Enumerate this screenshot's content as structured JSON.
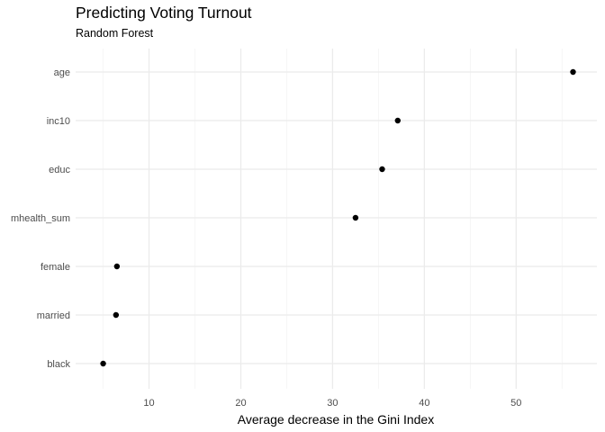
{
  "chart_data": {
    "type": "scatter",
    "title": "Predicting Voting Turnout",
    "subtitle": "Random Forest",
    "xlabel": "Average decrease in the Gini Index",
    "ylabel": "",
    "categories": [
      "age",
      "inc10",
      "educ",
      "mhealth_sum",
      "female",
      "married",
      "black"
    ],
    "values": [
      56.2,
      37.1,
      35.4,
      32.5,
      6.5,
      6.4,
      5.0
    ],
    "xlim": [
      2.0,
      58.8
    ],
    "xticks": [
      10,
      20,
      30,
      40,
      50
    ],
    "grid": true,
    "point_color": "#000000",
    "major_grid_color": "#ebebeb",
    "minor_grid_color": "#f2f2f2"
  }
}
